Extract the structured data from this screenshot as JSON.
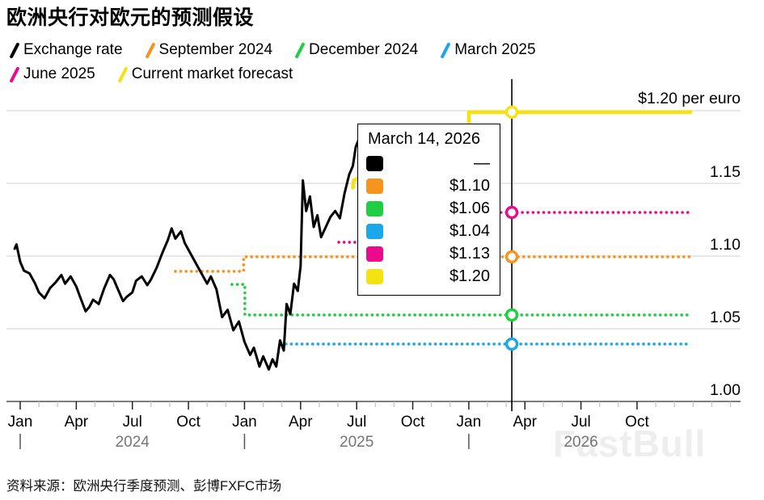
{
  "title": "欧洲央行对欧元的预测假设",
  "watermark": "FastBull",
  "source": "资料来源：欧洲央行季度预测、彭博FXFC市场",
  "legend": {
    "items": [
      {
        "label": "Exchange rate",
        "color": "#000000"
      },
      {
        "label": "September 2024",
        "color": "#F7941D"
      },
      {
        "label": "December 2024",
        "color": "#1FCE43"
      },
      {
        "label": "March 2025",
        "color": "#1BA7E8"
      },
      {
        "label": "June 2025",
        "color": "#EA0B8C"
      },
      {
        "label": "Current market forecast",
        "color": "#F5E311"
      }
    ]
  },
  "tooltip": {
    "date": "March 14, 2026",
    "rows": [
      {
        "series": "Exchange rate",
        "color": "#000000",
        "value": "—"
      },
      {
        "series": "September 2024",
        "color": "#F7941D",
        "value": "$1.10"
      },
      {
        "series": "December 2024",
        "color": "#1FCE43",
        "value": "$1.06"
      },
      {
        "series": "March 2025",
        "color": "#1BA7E8",
        "value": "$1.04"
      },
      {
        "series": "June 2025",
        "color": "#EA0B8C",
        "value": "$1.13"
      },
      {
        "series": "Current market forecast",
        "color": "#F5E311",
        "value": "$1.20"
      }
    ]
  },
  "chart_data": {
    "type": "line",
    "title": "欧洲央行对欧元的预测假设",
    "x_axis": {
      "unit": "months since Jan 2024",
      "tick_months": [
        0,
        3,
        6,
        9,
        12,
        15,
        18,
        21,
        24,
        27,
        30,
        33
      ],
      "tick_labels": [
        "Jan",
        "Apr",
        "Jul",
        "Oct",
        "Jan",
        "Apr",
        "Jul",
        "Oct",
        "Jan",
        "Apr",
        "Jul",
        "Oct"
      ],
      "minor_tick_every_month": true,
      "year_labels": [
        {
          "label": "2024",
          "month": 6
        },
        {
          "label": "2025",
          "month": 18
        },
        {
          "label": "2026",
          "month": 30
        }
      ],
      "year_divider_months": [
        0,
        12,
        24
      ],
      "range_months": [
        -0.7,
        38.5
      ]
    },
    "y_axis": {
      "ticks": [
        1.0,
        1.05,
        1.1,
        1.15
      ],
      "tick_labels": [
        "1.00",
        "1.05",
        "1.10",
        "1.15"
      ],
      "top_value": 1.2,
      "top_label": "$1.20 per euro",
      "range": [
        0.997,
        1.222
      ],
      "grid": true,
      "side": "right"
    },
    "hover": {
      "date": "March 14, 2026",
      "month": 26.3,
      "markers": [
        {
          "series": "September 2024",
          "value": 1.0995
        },
        {
          "series": "December 2024",
          "value": 1.0595
        },
        {
          "series": "March 2025",
          "value": 1.0395
        },
        {
          "series": "June 2025",
          "value": 1.13
        },
        {
          "series": "Current market forecast",
          "value": 1.199
        }
      ]
    },
    "series": [
      {
        "name": "Exchange rate",
        "color": "#000000",
        "style": "solid",
        "width": 3,
        "z": 2,
        "points": [
          [
            -0.3,
            1.105
          ],
          [
            -0.2,
            1.108
          ],
          [
            0.0,
            1.096
          ],
          [
            0.2,
            1.09
          ],
          [
            0.5,
            1.088
          ],
          [
            0.8,
            1.081
          ],
          [
            1.0,
            1.075
          ],
          [
            1.3,
            1.071
          ],
          [
            1.6,
            1.078
          ],
          [
            1.9,
            1.082
          ],
          [
            2.2,
            1.087
          ],
          [
            2.4,
            1.081
          ],
          [
            2.7,
            1.086
          ],
          [
            3.0,
            1.079
          ],
          [
            3.2,
            1.072
          ],
          [
            3.5,
            1.062
          ],
          [
            3.7,
            1.065
          ],
          [
            3.9,
            1.07
          ],
          [
            4.2,
            1.067
          ],
          [
            4.5,
            1.078
          ],
          [
            4.8,
            1.087
          ],
          [
            5.0,
            1.084
          ],
          [
            5.2,
            1.078
          ],
          [
            5.5,
            1.069
          ],
          [
            5.7,
            1.072
          ],
          [
            6.0,
            1.075
          ],
          [
            6.2,
            1.083
          ],
          [
            6.5,
            1.086
          ],
          [
            6.8,
            1.08
          ],
          [
            7.0,
            1.084
          ],
          [
            7.3,
            1.092
          ],
          [
            7.6,
            1.102
          ],
          [
            7.9,
            1.111
          ],
          [
            8.1,
            1.119
          ],
          [
            8.3,
            1.112
          ],
          [
            8.6,
            1.117
          ],
          [
            8.8,
            1.109
          ],
          [
            9.1,
            1.102
          ],
          [
            9.4,
            1.095
          ],
          [
            9.7,
            1.088
          ],
          [
            10.0,
            1.081
          ],
          [
            10.2,
            1.086
          ],
          [
            10.5,
            1.077
          ],
          [
            10.8,
            1.058
          ],
          [
            11.1,
            1.063
          ],
          [
            11.4,
            1.049
          ],
          [
            11.7,
            1.055
          ],
          [
            12.0,
            1.041
          ],
          [
            12.3,
            1.032
          ],
          [
            12.5,
            1.037
          ],
          [
            12.8,
            1.024
          ],
          [
            13.0,
            1.031
          ],
          [
            13.3,
            1.022
          ],
          [
            13.5,
            1.029
          ],
          [
            13.7,
            1.024
          ],
          [
            13.9,
            1.042
          ],
          [
            14.1,
            1.035
          ],
          [
            14.25,
            1.067
          ],
          [
            14.45,
            1.06
          ],
          [
            14.65,
            1.081
          ],
          [
            14.85,
            1.076
          ],
          [
            15.0,
            1.093
          ],
          [
            15.12,
            1.152
          ],
          [
            15.3,
            1.131
          ],
          [
            15.5,
            1.141
          ],
          [
            15.7,
            1.12
          ],
          [
            15.9,
            1.128
          ],
          [
            16.1,
            1.113
          ],
          [
            16.35,
            1.12
          ],
          [
            16.6,
            1.127
          ],
          [
            16.85,
            1.131
          ],
          [
            17.1,
            1.126
          ],
          [
            17.35,
            1.143
          ],
          [
            17.6,
            1.156
          ],
          [
            17.8,
            1.162
          ],
          [
            17.95,
            1.175
          ],
          [
            18.13,
            1.181
          ]
        ]
      },
      {
        "name": "September 2024",
        "color": "#F7941D",
        "style": "dotted",
        "width": 3.6,
        "z": 0,
        "points": [
          [
            8.3,
            1.0895
          ],
          [
            11.95,
            1.0895
          ],
          [
            11.95,
            1.0995
          ],
          [
            35.86,
            1.0995
          ]
        ]
      },
      {
        "name": "December 2024",
        "color": "#1FCE43",
        "style": "dotted",
        "width": 3.6,
        "z": 0,
        "points": [
          [
            11.33,
            1.0805
          ],
          [
            12.02,
            1.0805
          ],
          [
            12.02,
            1.0595
          ],
          [
            35.86,
            1.0595
          ]
        ]
      },
      {
        "name": "March 2025",
        "color": "#1BA7E8",
        "style": "dotted",
        "width": 3.6,
        "z": 0,
        "points": [
          [
            13.93,
            1.0395
          ],
          [
            35.86,
            1.0395
          ]
        ]
      },
      {
        "name": "June 2025",
        "color": "#EA0B8C",
        "style": "dotted",
        "width": 3.6,
        "z": 0,
        "points": [
          [
            17.04,
            1.1095
          ],
          [
            20.5,
            1.1095
          ],
          [
            20.5,
            1.13
          ],
          [
            35.86,
            1.13
          ]
        ]
      },
      {
        "name": "Current market forecast",
        "color": "#F5E311",
        "style": "solid",
        "width": 4.6,
        "z": 1,
        "points": [
          [
            17.8,
            1.147
          ],
          [
            17.84,
            1.152
          ],
          [
            24.0,
            1.188
          ],
          [
            24.0,
            1.199
          ],
          [
            35.86,
            1.199
          ]
        ]
      }
    ]
  }
}
